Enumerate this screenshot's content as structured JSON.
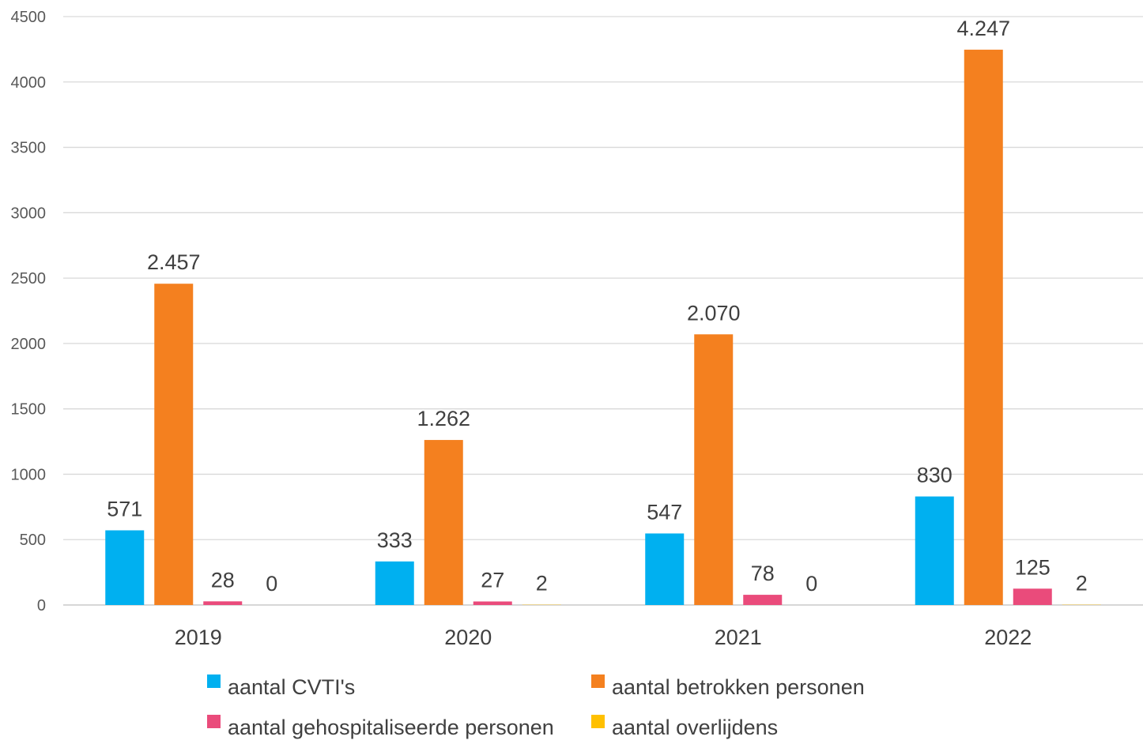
{
  "chart_data": {
    "type": "bar",
    "categories": [
      "2019",
      "2020",
      "2021",
      "2022"
    ],
    "series": [
      {
        "name": "aantal CVTI's",
        "color": "#00B0F0",
        "values": [
          571,
          333,
          547,
          830
        ],
        "labels": [
          "571",
          "333",
          "547",
          "830"
        ]
      },
      {
        "name": "aantal betrokken personen",
        "color": "#F4801F",
        "values": [
          2457,
          1262,
          2070,
          4247
        ],
        "labels": [
          "2.457",
          "1.262",
          "2.070",
          "4.247"
        ]
      },
      {
        "name": "aantal gehospitaliseerde personen",
        "color": "#EA4B7B",
        "values": [
          28,
          27,
          78,
          125
        ],
        "labels": [
          "28",
          "27",
          "78",
          "125"
        ]
      },
      {
        "name": "aantal overlijdens",
        "color": "#FFC000",
        "values": [
          0,
          2,
          0,
          2
        ],
        "labels": [
          "0",
          "2",
          "0",
          "2"
        ]
      }
    ],
    "ylim": [
      0,
      4500
    ],
    "yticks": [
      "0",
      "500",
      "1000",
      "1500",
      "2000",
      "2500",
      "3000",
      "3500",
      "4000",
      "4500"
    ],
    "grid": true,
    "legend_position": "bottom"
  }
}
